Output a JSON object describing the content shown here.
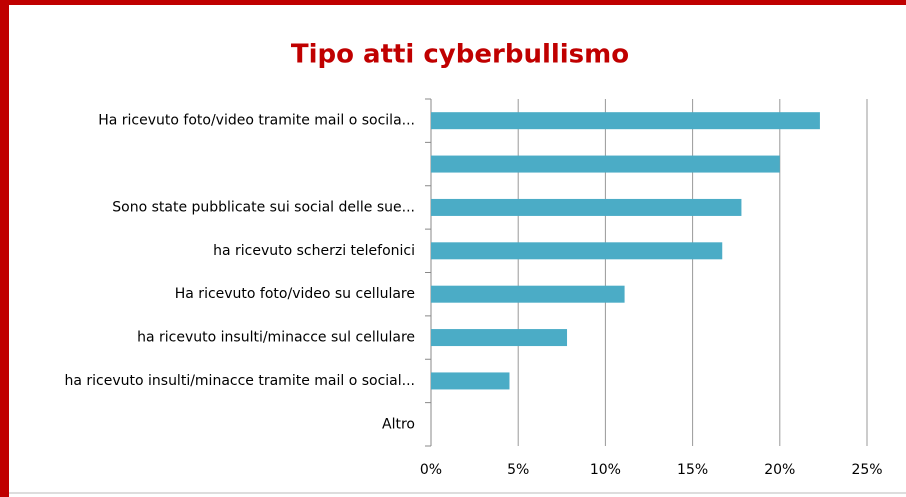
{
  "chart_data": {
    "type": "bar",
    "orientation": "horizontal",
    "title": "Tipo atti cyberbullismo",
    "categories": [
      "Ha ricevuto foto/video tramite mail o socila...",
      null,
      "Sono state pubblicate sui social  delle sue...",
      "ha ricevuto scherzi telefonici",
      "Ha ricevuto foto/video su cellulare",
      "ha ricevuto insulti/minacce sul cellulare",
      "ha ricevuto insulti/minacce tramite mail o social...",
      "Altro"
    ],
    "values": [
      22.3,
      20.0,
      17.8,
      16.7,
      11.1,
      7.8,
      4.5,
      0
    ],
    "color": "#4bacc6",
    "xlim": [
      0,
      25
    ],
    "xticks": [
      {
        "value": 0,
        "label": "0%"
      },
      {
        "value": 5,
        "label": "5%"
      },
      {
        "value": 10,
        "label": "10%"
      },
      {
        "value": 15,
        "label": "15%"
      },
      {
        "value": 20,
        "label": "20%"
      },
      {
        "value": 25,
        "label": "25%"
      }
    ],
    "grid": true
  }
}
